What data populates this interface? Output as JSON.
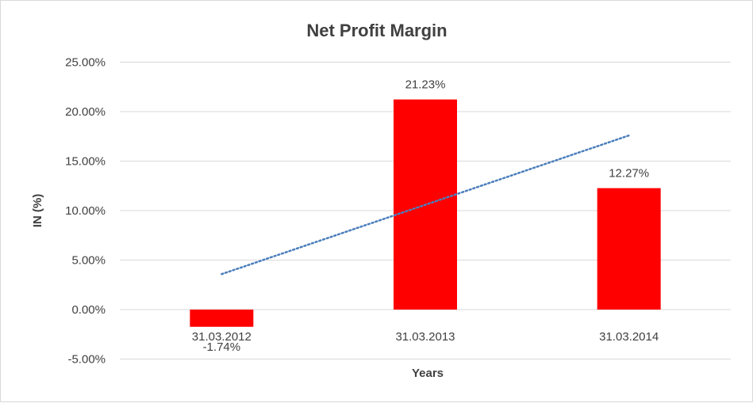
{
  "chart_data": {
    "type": "bar",
    "title": "Net Profit Margin",
    "xlabel": "Years",
    "ylabel": "IN (%)",
    "categories": [
      "31.03.2012",
      "31.03.2013",
      "31.03.2014"
    ],
    "values": [
      -1.74,
      21.23,
      12.27
    ],
    "data_labels": [
      "-1.74%",
      "21.23%",
      "12.27%"
    ],
    "ylim": [
      -5,
      25
    ],
    "yticks": [
      25,
      20,
      15,
      10,
      5,
      0,
      -5
    ],
    "ytick_labels": [
      "25.00%",
      "20.00%",
      "15.00%",
      "10.00%",
      "5.00%",
      "0.00%",
      "-5.00%"
    ],
    "bar_color": "#ff0000",
    "trendline": {
      "type": "linear",
      "color": "#4a7ebb",
      "style": "dotted"
    },
    "grid": true,
    "legend": "none"
  }
}
